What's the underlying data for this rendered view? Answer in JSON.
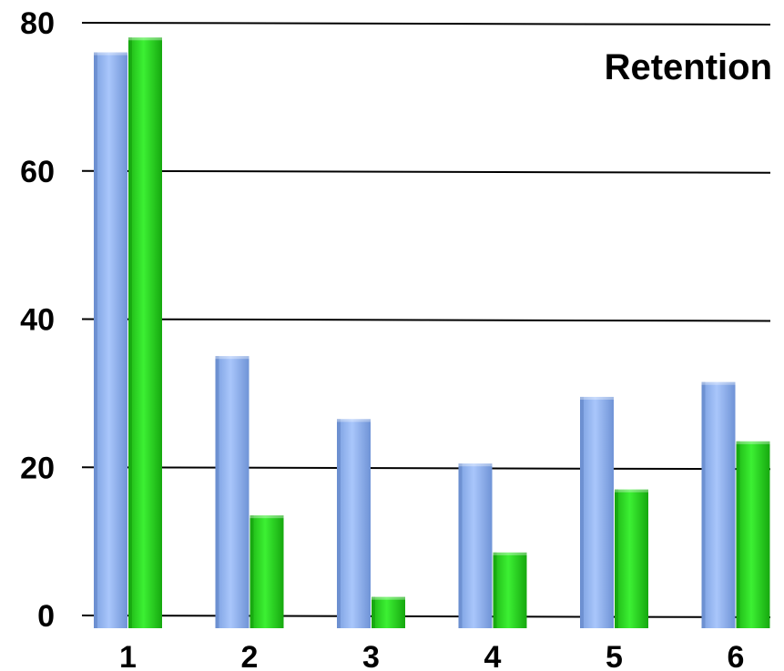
{
  "chart_data": {
    "type": "bar",
    "title": "Retention",
    "xlabel": "",
    "ylabel": "",
    "categories": [
      "1",
      "2",
      "3",
      "4",
      "5",
      "6"
    ],
    "series": [
      {
        "values": [
          76,
          35,
          26.5,
          20.5,
          29.5,
          31.5
        ]
      },
      {
        "values": [
          78,
          13.5,
          2.5,
          8.5,
          17,
          23.5
        ]
      }
    ],
    "ylim": [
      0,
      80
    ],
    "yticks": [
      "0",
      "20",
      "40",
      "60",
      "80"
    ],
    "grid": true,
    "colors": [
      "#8bb0f0",
      "#22d41b"
    ]
  }
}
